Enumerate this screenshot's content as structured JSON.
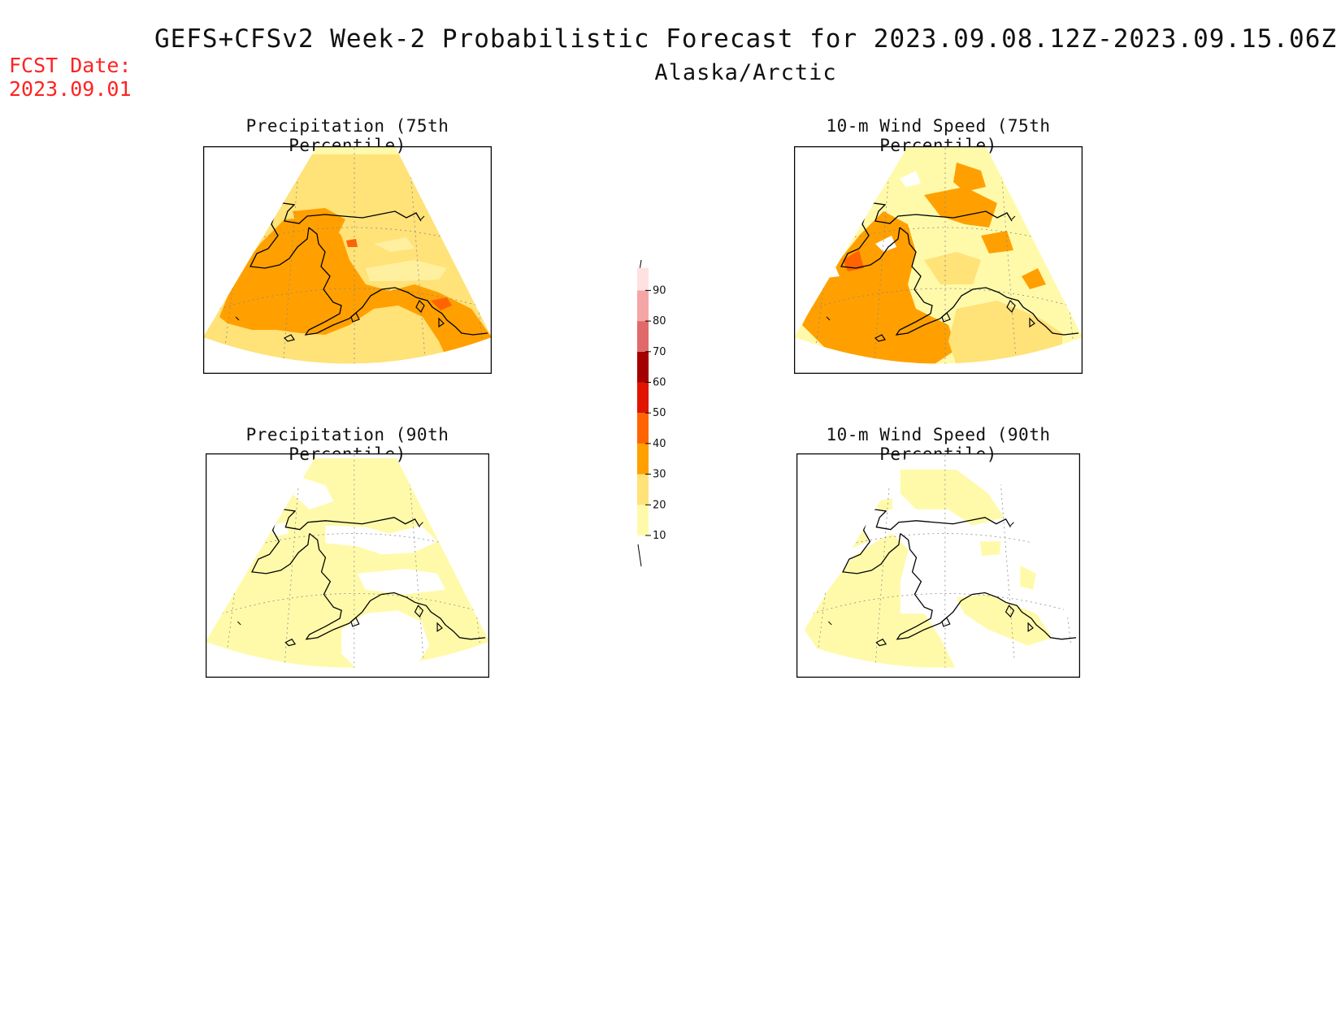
{
  "title": "GEFS+CFSv2 Week-2 Probabilistic Forecast for 2023.09.08.12Z-2023.09.15.06Z",
  "subtitle": "Alaska/Arctic",
  "fcst_date": {
    "label": "FCST Date:",
    "value": "2023.09.01"
  },
  "panels": [
    {
      "id": "precip75",
      "title": "Precipitation (75th Percentile)"
    },
    {
      "id": "wind75",
      "title": "10-m Wind Speed (75th Percentile)"
    },
    {
      "id": "precip90",
      "title": "Precipitation (90th Percentile)"
    },
    {
      "id": "wind90",
      "title": "10-m Wind Speed (90th Percentile)"
    }
  ],
  "colorbar": {
    "ticks": [
      "10",
      "20",
      "30",
      "40",
      "50",
      "60",
      "70",
      "80",
      "90"
    ],
    "colors": [
      "#fffaaa",
      "#ffe278",
      "#ffa000",
      "#ff6400",
      "#e11400",
      "#a50000",
      "#e06a6a",
      "#f4a6a6",
      "#ffe1e1"
    ]
  }
}
